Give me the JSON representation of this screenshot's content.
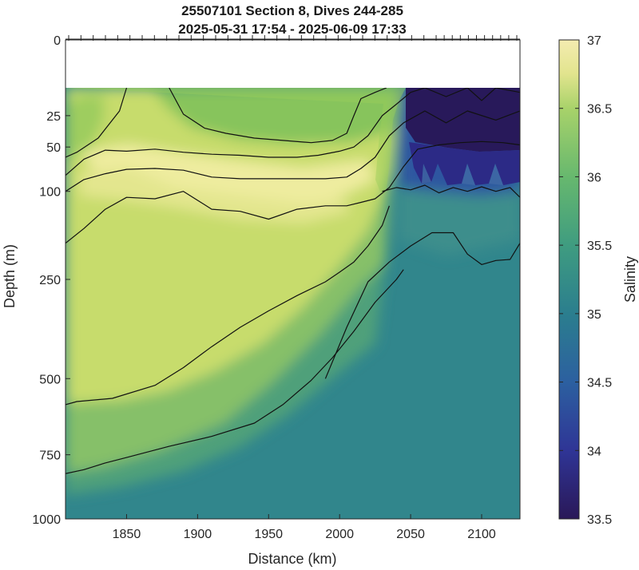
{
  "chart_data": {
    "type": "heatmap",
    "title": "25507101 Section 8, Dives 244-285",
    "subtitle": "2025-05-31 17:54 - 2025-06-09 17:33",
    "xlabel": "Distance (km)",
    "ylabel": "Depth (m)",
    "colorbar_label": "Salinity",
    "xlim": [
      1807,
      2127
    ],
    "ylim": [
      1000,
      0
    ],
    "y_scale": "sqrt",
    "x_ticks": [
      1850,
      1900,
      1950,
      2000,
      2050,
      2100
    ],
    "y_ticks": [
      0,
      25,
      50,
      100,
      250,
      500,
      750,
      1000
    ],
    "colorbar_range": [
      33.5,
      37
    ],
    "colorbar_ticks": [
      33.5,
      34,
      34.5,
      35,
      35.5,
      36,
      36.5,
      37
    ],
    "data_depth_range": [
      10,
      1000
    ],
    "grid": false,
    "surface_tick_marks": true,
    "colormap": [
      "#2a1858",
      "#2f3596",
      "#2c60a0",
      "#2b7e8e",
      "#3f9c80",
      "#67b86e",
      "#a8d26a",
      "#e2e48e",
      "#f4ecb0"
    ],
    "contours": [
      {
        "level": 36.5,
        "x": [
          1807,
          1815,
          1830,
          1845,
          1850
        ],
        "depth": [
          60,
          55,
          42,
          22,
          10
        ]
      },
      {
        "level": 36.5,
        "x": [
          1880,
          1890,
          1905,
          1920,
          1940,
          1960,
          1980,
          1995,
          2005,
          2010,
          2015,
          2025,
          2033
        ],
        "depth": [
          10,
          24,
          34,
          38,
          42,
          44,
          46,
          44,
          38,
          25,
          15,
          12,
          10
        ]
      },
      {
        "level": 36.6,
        "x": [
          1807,
          1820,
          1835,
          1850,
          1870,
          1890,
          1910,
          1930,
          1950,
          1970,
          1985,
          2000,
          2010,
          2020,
          2030,
          2040,
          2050,
          2060,
          2075,
          2090,
          2100,
          2110,
          2127
        ],
        "depth": [
          80,
          62,
          53,
          54,
          52,
          55,
          57,
          58,
          60,
          60,
          58,
          54,
          50,
          40,
          25,
          18,
          12,
          10,
          14,
          10,
          16,
          10,
          12
        ]
      },
      {
        "level": 36.7,
        "x": [
          1807,
          1820,
          1835,
          1850,
          1870,
          1890,
          1910,
          1930,
          1950,
          1970,
          1990,
          2005,
          2015,
          2025,
          2035,
          2045,
          2060,
          2075,
          2090,
          2110,
          2127
        ],
        "depth": [
          100,
          85,
          78,
          73,
          72,
          74,
          82,
          84,
          84,
          84,
          84,
          82,
          72,
          60,
          40,
          30,
          22,
          30,
          22,
          28,
          22
        ]
      },
      {
        "level": 36.6,
        "x": [
          1807,
          1820,
          1835,
          1850,
          1870,
          1890,
          1910,
          1930,
          1950,
          1970,
          1990,
          2005,
          2015,
          2025,
          2035,
          2045,
          2055,
          2070,
          2085,
          2100,
          2115,
          2127
        ],
        "depth": [
          180,
          155,
          125,
          108,
          110,
          100,
          125,
          128,
          140,
          125,
          120,
          120,
          115,
          110,
          95,
          70,
          52,
          48,
          46,
          45,
          46,
          48
        ]
      },
      {
        "level": 35.5,
        "x": [
          2030,
          2040,
          2050,
          2060,
          2070,
          2080,
          2090,
          2100,
          2110,
          2120,
          2127
        ],
        "depth": [
          100,
          95,
          98,
          92,
          102,
          95,
          100,
          94,
          100,
          95,
          108
        ]
      },
      {
        "level": 35.4,
        "x": [
          1990,
          2005,
          2020,
          2035,
          2050,
          2065,
          2080,
          2090,
          2100,
          2110,
          2120,
          2127
        ],
        "depth": [
          500,
          360,
          255,
          215,
          185,
          162,
          162,
          200,
          220,
          212,
          210,
          180
        ]
      },
      {
        "level": 36.0,
        "x": [
          1807,
          1815,
          1840,
          1870,
          1890,
          1910,
          1930,
          1950,
          1970,
          1990,
          2000,
          2010,
          2020,
          2030,
          2035
        ],
        "depth": [
          580,
          570,
          560,
          520,
          468,
          410,
          360,
          320,
          285,
          255,
          235,
          215,
          185,
          150,
          120
        ]
      },
      {
        "level": 35.5,
        "x": [
          1807,
          1820,
          1835,
          1850,
          1880,
          1910,
          1940,
          1960,
          1980,
          1995,
          2010,
          2025,
          2040,
          2045
        ],
        "depth": [
          820,
          805,
          780,
          760,
          720,
          685,
          640,
          580,
          505,
          440,
          370,
          300,
          250,
          230
        ]
      }
    ]
  }
}
